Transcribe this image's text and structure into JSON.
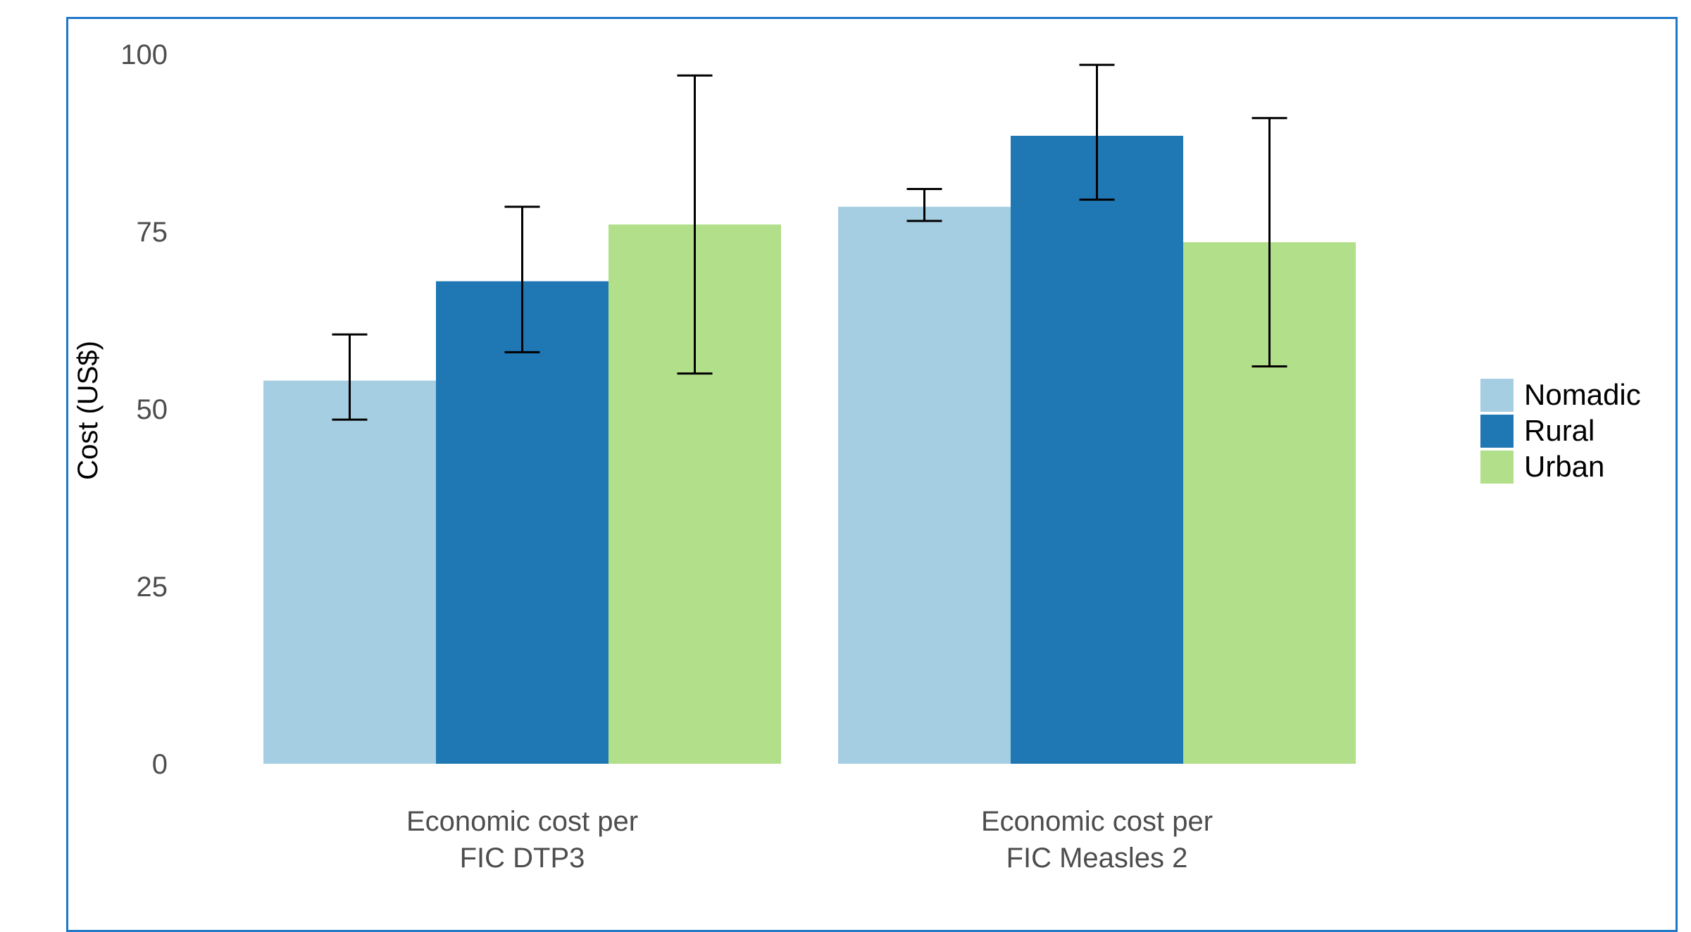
{
  "chart_data": {
    "type": "bar",
    "title": "",
    "xlabel": "",
    "ylabel": "Cost (US$)",
    "ylim": [
      0,
      100
    ],
    "yticks": [
      0,
      25,
      50,
      75,
      100
    ],
    "grid": false,
    "legend_position": "right",
    "categories": [
      [
        "Economic cost per",
        "FIC DTP3"
      ],
      [
        "Economic cost per",
        "FIC Measles 2"
      ]
    ],
    "series": [
      {
        "name": "Nomadic",
        "color": "#a6cee3",
        "values": [
          54,
          78.5
        ],
        "error_low": [
          48.5,
          76.5
        ],
        "error_high": [
          60.5,
          81
        ]
      },
      {
        "name": "Rural",
        "color": "#1f78b4",
        "values": [
          68,
          88.5
        ],
        "error_low": [
          58,
          79.5
        ],
        "error_high": [
          78.5,
          98.5
        ]
      },
      {
        "name": "Urban",
        "color": "#b2df8a",
        "values": [
          76,
          73.5
        ],
        "error_low": [
          55,
          56
        ],
        "error_high": [
          97,
          91
        ]
      }
    ]
  }
}
